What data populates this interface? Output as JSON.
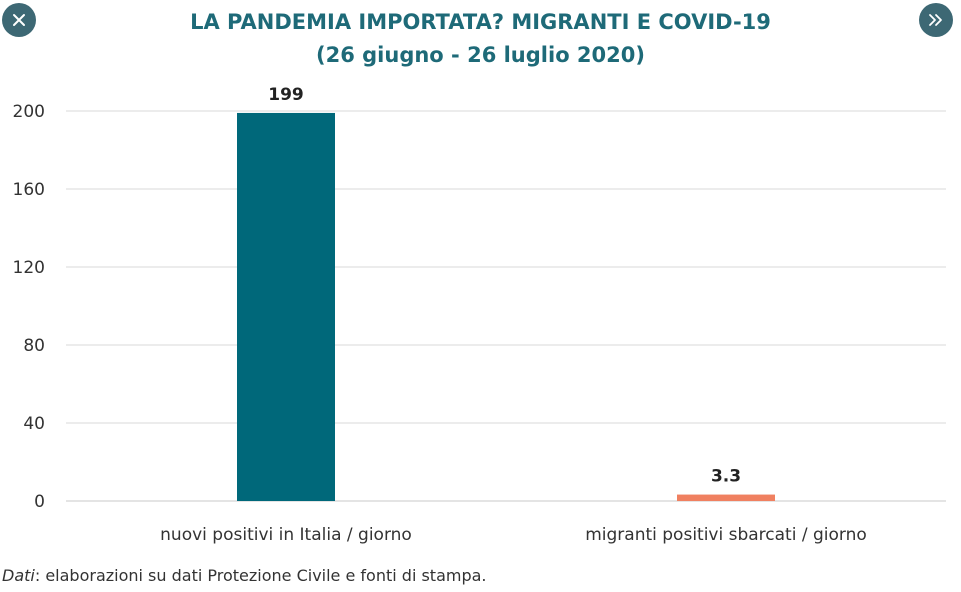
{
  "nav": {
    "close_icon": "close-icon",
    "next_icon": "double-chevron-right-icon"
  },
  "colors": {
    "accent": "#1e6a78",
    "button_bg": "#3d6874",
    "bar_primary": "#00687a",
    "bar_secondary": "#f08060",
    "grid": "#d8d8d8"
  },
  "chart_data": {
    "type": "bar",
    "title": "LA PANDEMIA IMPORTATA? MIGRANTI E COVID-19",
    "subtitle": "(26 giugno - 26 luglio 2020)",
    "categories": [
      "nuovi positivi in Italia / giorno",
      "migranti positivi sbarcati / giorno"
    ],
    "values": [
      199,
      3.3
    ],
    "data_labels": [
      "199",
      "3.3"
    ],
    "ylim": [
      0,
      200
    ],
    "yticks": [
      0,
      40,
      80,
      120,
      160,
      200
    ],
    "grid": true,
    "legend": "none"
  },
  "source": {
    "label": "Dati",
    "text": ": elaborazioni su dati Protezione Civile e fonti di stampa."
  }
}
